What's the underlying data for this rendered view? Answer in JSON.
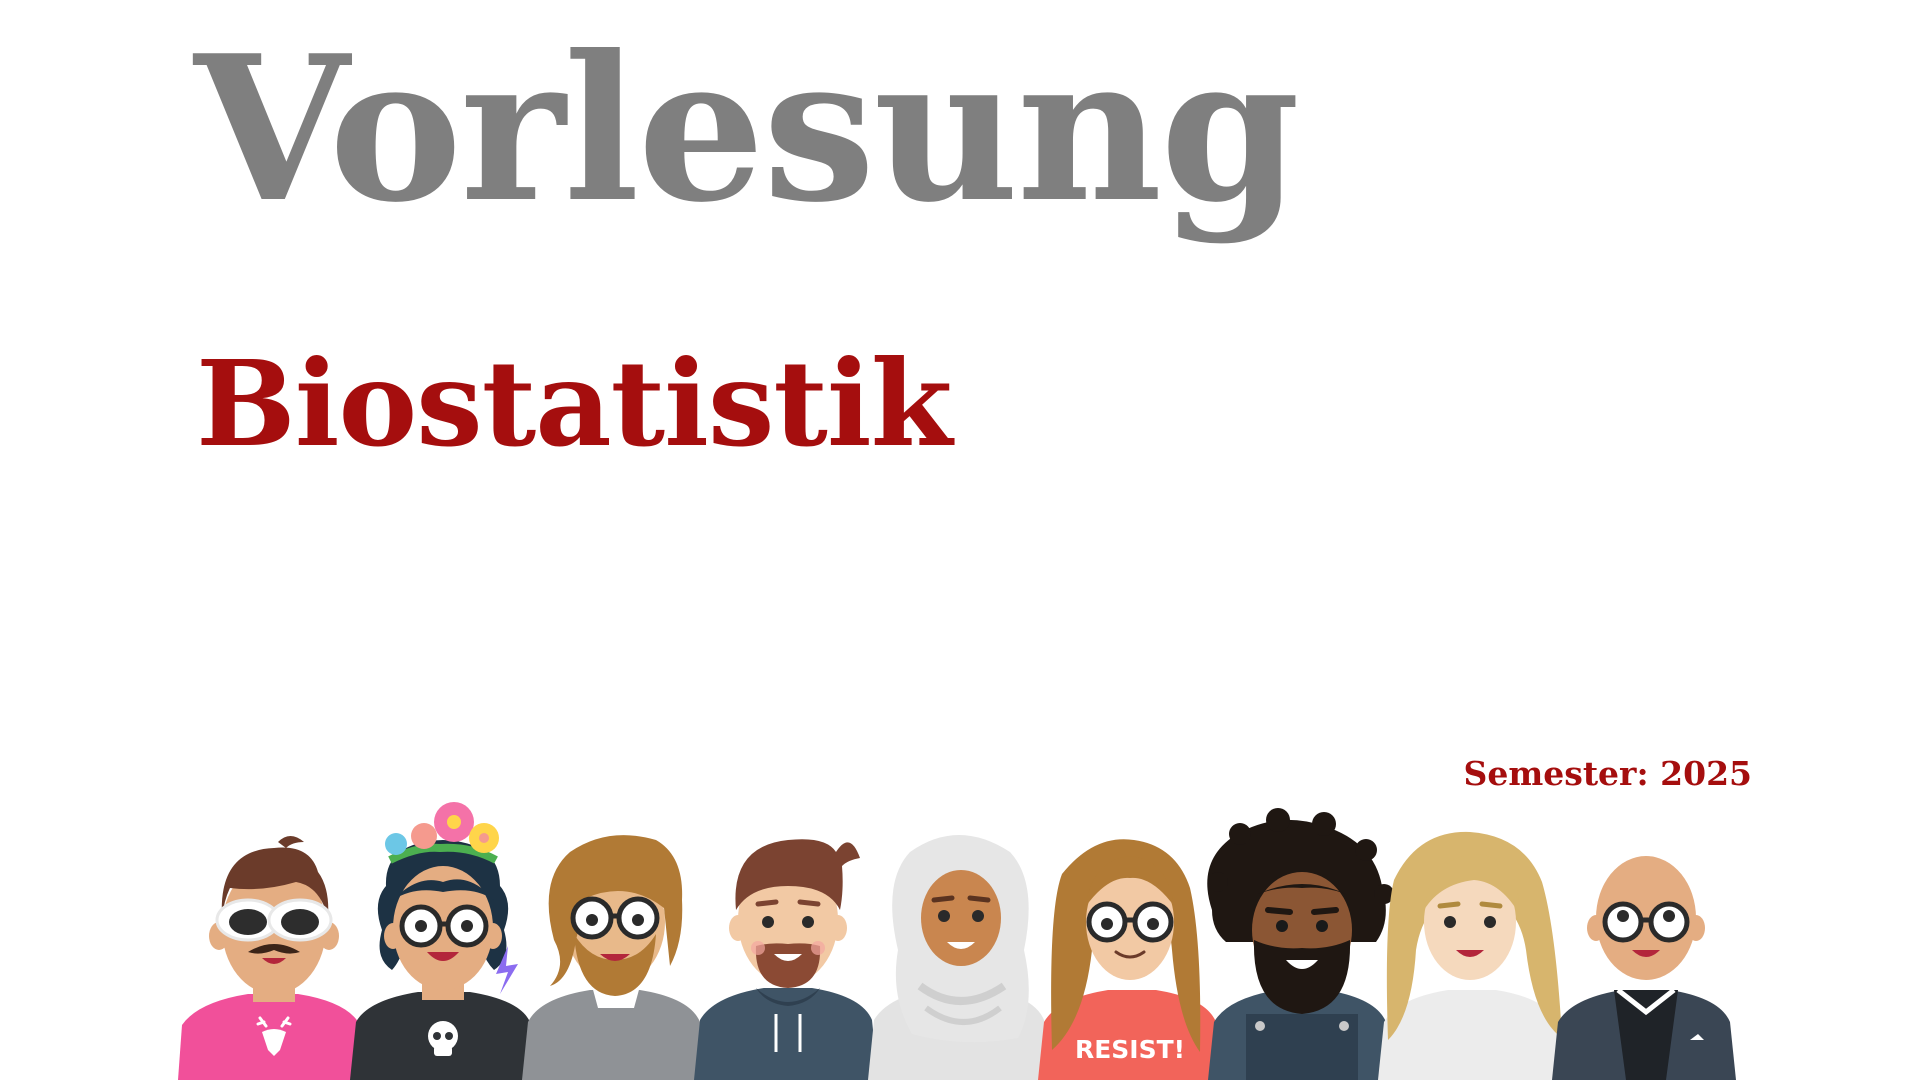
{
  "slide": {
    "title": "Vorlesung",
    "subtitle": "Biostatistik",
    "semester_label": "Semester:",
    "semester_value": "2025"
  },
  "colors": {
    "title": "#7f7f7f",
    "accent": "#a50e0e",
    "background": "#ffffff"
  },
  "illustration": {
    "shirt_text": "RESIST!",
    "icons": [
      "deer-icon",
      "skull-icon",
      "lightning-icon",
      "flower-crown-icon"
    ]
  }
}
